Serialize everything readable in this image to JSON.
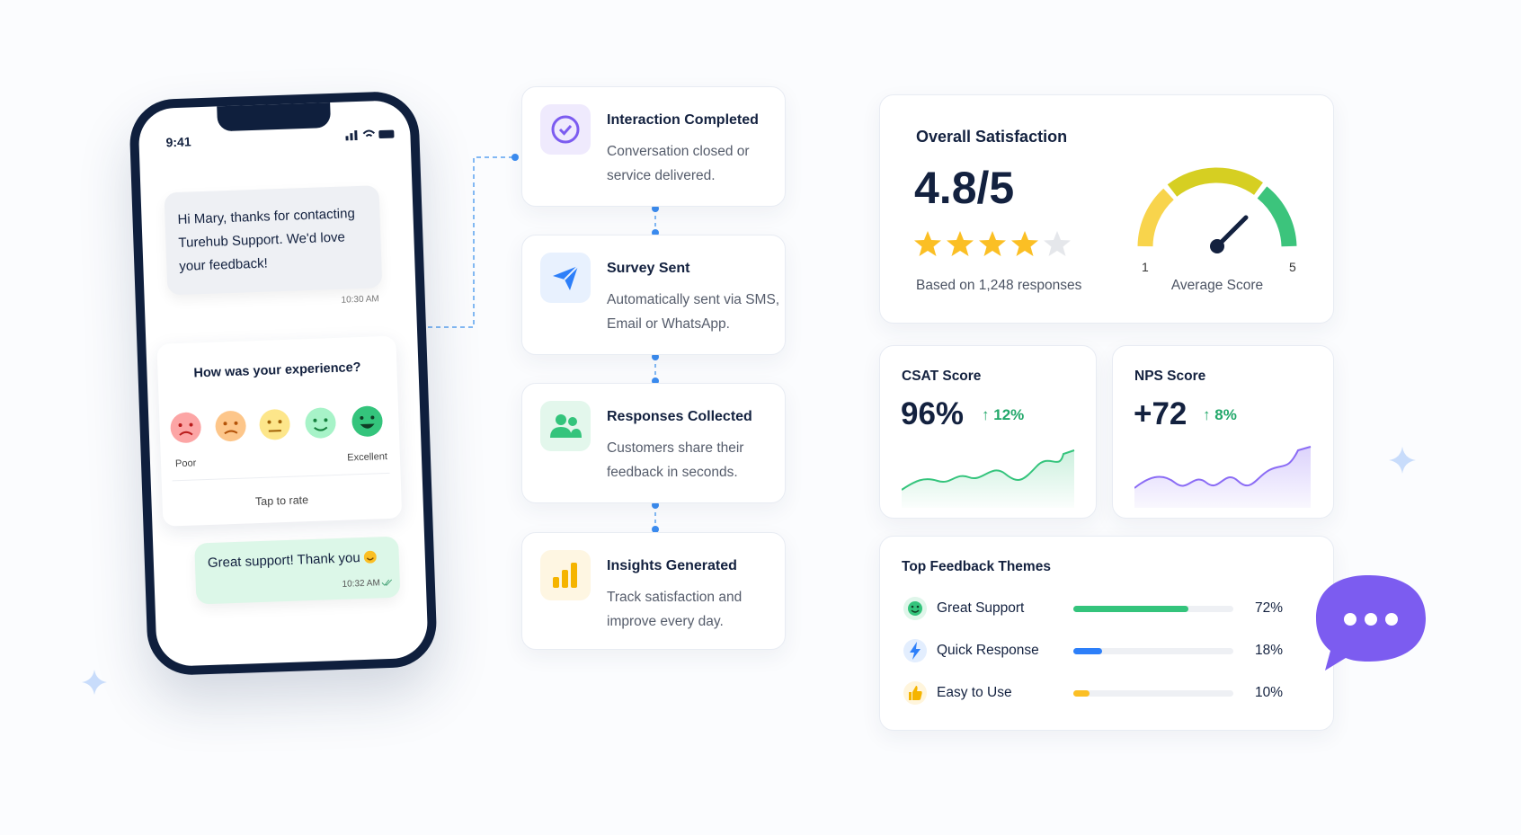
{
  "phone": {
    "time": "9:41",
    "message": "Hi Mary, thanks for contacting Turehub Support. We'd love your feedback!",
    "message_time": "10:30 AM",
    "rating_question": "How was your experience?",
    "rating_low": "Poor",
    "rating_high": "Excellent",
    "rating_action": "Tap to rate",
    "reply": "Great support! Thank you",
    "reply_time": "10:32 AM"
  },
  "steps": [
    {
      "title": "Interaction Completed",
      "description": "Conversation closed or service delivered."
    },
    {
      "title": "Survey Sent",
      "description": "Automatically sent via SMS, Email or WhatsApp."
    },
    {
      "title": "Responses Collected",
      "description": "Customers share their feedback in seconds."
    },
    {
      "title": "Insights Generated",
      "description": "Track satisfaction and improve every day."
    }
  ],
  "overall": {
    "title": "Overall Satisfaction",
    "score": "4.8/5",
    "based_on": "Based on 1,248 responses",
    "gauge_min": "1",
    "gauge_max": "5",
    "gauge_caption": "Average Score"
  },
  "csat": {
    "title": "CSAT Score",
    "value": "96%",
    "change": "12%"
  },
  "nps": {
    "title": "NPS Score",
    "value": "+72",
    "change": "8%"
  },
  "themes": {
    "title": "Top Feedback Themes",
    "items": [
      {
        "label": "Great Support",
        "value": 72,
        "value_label": "72%",
        "color": "#34c47c"
      },
      {
        "label": "Quick Response",
        "value": 18,
        "value_label": "18%",
        "color": "#2d7ff9"
      },
      {
        "label": "Easy to Use",
        "value": 10,
        "value_label": "10%",
        "color": "#fbbf24"
      }
    ]
  }
}
